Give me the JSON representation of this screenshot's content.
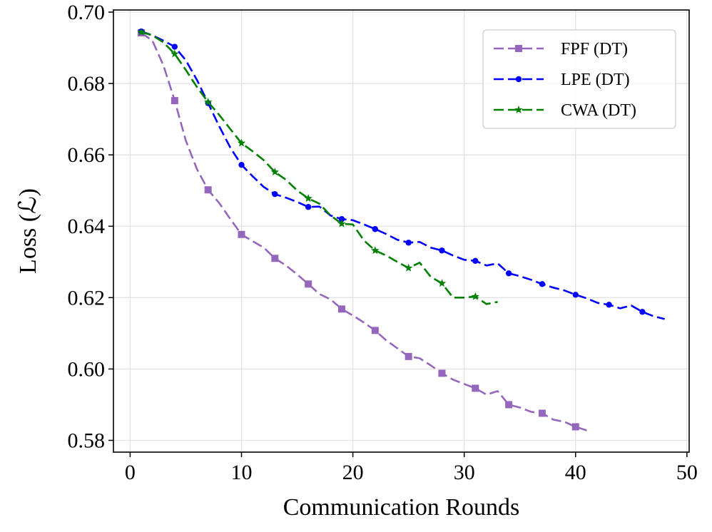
{
  "chart_data": {
    "type": "line",
    "title": "",
    "xlabel": "Communication Rounds",
    "ylabel": "Loss (ℒ)",
    "xlim": [
      -1.5,
      50.2
    ],
    "ylim": [
      0.5767,
      0.7006
    ],
    "xticks": [
      0,
      10,
      20,
      30,
      40,
      50
    ],
    "xtick_labels": [
      "0",
      "10",
      "20",
      "30",
      "40",
      "50"
    ],
    "yticks": [
      0.58,
      0.6,
      0.62,
      0.64,
      0.66,
      0.68,
      0.7
    ],
    "ytick_labels": [
      "0.58",
      "0.60",
      "0.62",
      "0.64",
      "0.66",
      "0.68",
      "0.70"
    ],
    "grid": true,
    "legend_position": "top-right",
    "series": [
      {
        "name": "FPF (DT)",
        "color": "#9467bd",
        "marker": "square",
        "x": [
          1,
          2,
          3,
          4,
          5,
          6,
          7,
          8,
          9,
          10,
          11,
          12,
          13,
          14,
          15,
          16,
          17,
          18,
          19,
          20,
          21,
          22,
          23,
          24,
          25,
          26,
          27,
          28,
          29,
          30,
          31,
          32,
          33,
          34,
          35,
          36,
          37,
          38,
          39,
          40,
          41
        ],
        "y": [
          0.6942,
          0.692,
          0.685,
          0.6752,
          0.664,
          0.656,
          0.6502,
          0.6465,
          0.642,
          0.6377,
          0.6358,
          0.634,
          0.631,
          0.629,
          0.6265,
          0.6238,
          0.621,
          0.6195,
          0.6168,
          0.615,
          0.613,
          0.6108,
          0.608,
          0.6058,
          0.6035,
          0.603,
          0.601,
          0.5988,
          0.597,
          0.5958,
          0.5946,
          0.5928,
          0.5938,
          0.59,
          0.5892,
          0.588,
          0.5876,
          0.5858,
          0.5852,
          0.5838,
          0.5828
        ],
        "marker_x": [
          1,
          4,
          7,
          10,
          13,
          16,
          19,
          22,
          25,
          28,
          31,
          34,
          37,
          40
        ]
      },
      {
        "name": "LPE (DT)",
        "color": "#0000ff",
        "marker": "circle",
        "x": [
          1,
          2,
          3,
          4,
          5,
          6,
          7,
          8,
          9,
          10,
          11,
          12,
          13,
          14,
          15,
          16,
          17,
          18,
          19,
          20,
          21,
          22,
          23,
          24,
          25,
          26,
          27,
          28,
          29,
          30,
          31,
          32,
          33,
          34,
          35,
          36,
          37,
          38,
          39,
          40,
          41,
          42,
          43,
          44,
          45,
          46,
          47,
          48
        ],
        "y": [
          0.6946,
          0.6935,
          0.692,
          0.6903,
          0.6865,
          0.681,
          0.6745,
          0.668,
          0.662,
          0.6572,
          0.654,
          0.651,
          0.649,
          0.648,
          0.6468,
          0.6454,
          0.6455,
          0.643,
          0.642,
          0.6417,
          0.6405,
          0.6392,
          0.6378,
          0.6362,
          0.6354,
          0.6356,
          0.634,
          0.6332,
          0.6318,
          0.6306,
          0.6303,
          0.629,
          0.6296,
          0.6268,
          0.626,
          0.625,
          0.6238,
          0.6228,
          0.622,
          0.6208,
          0.6198,
          0.6185,
          0.618,
          0.617,
          0.6178,
          0.616,
          0.6148,
          0.614
        ],
        "marker_x": [
          1,
          4,
          7,
          10,
          13,
          16,
          19,
          22,
          25,
          28,
          31,
          34,
          37,
          40,
          43,
          46
        ]
      },
      {
        "name": "CWA (DT)",
        "color": "#008000",
        "marker": "star",
        "x": [
          1,
          2,
          3,
          4,
          5,
          6,
          7,
          8,
          9,
          10,
          11,
          12,
          13,
          14,
          15,
          16,
          17,
          18,
          19,
          20,
          21,
          22,
          23,
          24,
          25,
          26,
          27,
          28,
          29,
          30,
          31,
          32,
          33
        ],
        "y": [
          0.6944,
          0.6935,
          0.6915,
          0.6883,
          0.6838,
          0.679,
          0.6748,
          0.6712,
          0.6672,
          0.6633,
          0.661,
          0.6585,
          0.6552,
          0.653,
          0.65,
          0.6478,
          0.6463,
          0.643,
          0.6407,
          0.6405,
          0.636,
          0.6332,
          0.6318,
          0.63,
          0.6283,
          0.6298,
          0.6258,
          0.624,
          0.62,
          0.62,
          0.6203,
          0.6182,
          0.6188
        ],
        "marker_x": [
          1,
          4,
          7,
          10,
          13,
          16,
          19,
          22,
          25,
          28,
          31
        ]
      }
    ]
  }
}
